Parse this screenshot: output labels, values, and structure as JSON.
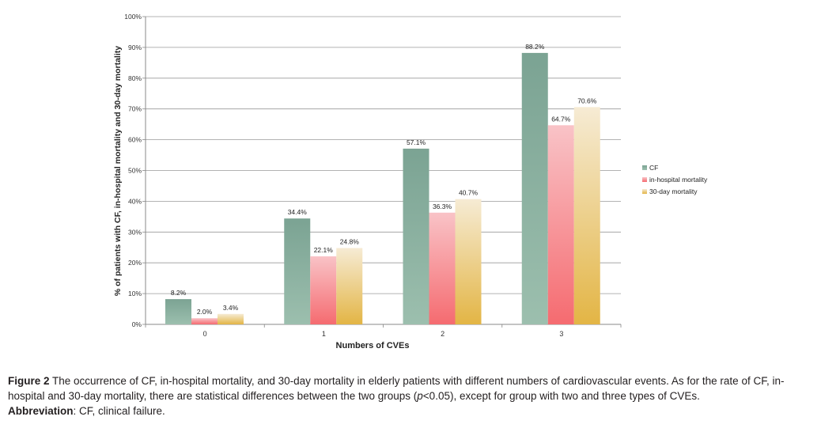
{
  "chart_data": {
    "type": "bar",
    "categories": [
      "0",
      "1",
      "2",
      "3"
    ],
    "series": [
      {
        "name": "CF",
        "values": [
          8.2,
          34.4,
          57.1,
          88.2
        ],
        "labels": [
          "8.2%",
          "34.4%",
          "57.1%",
          "88.2%"
        ],
        "color_top": "#7ba393",
        "color_bottom": "#9cbfae"
      },
      {
        "name": "in-hospital mortality",
        "values": [
          2.0,
          22.1,
          36.3,
          64.7
        ],
        "labels": [
          "2.0%",
          "22.1%",
          "36.3%",
          "64.7%"
        ],
        "color_top": "#f9c3c7",
        "color_bottom": "#f56b70"
      },
      {
        "name": "30-day mortality",
        "values": [
          3.4,
          24.8,
          40.7,
          70.6
        ],
        "labels": [
          "3.4%",
          "24.8%",
          "40.7%",
          "70.6%"
        ],
        "color_top": "#f6ebd4",
        "color_bottom": "#e3b545"
      }
    ],
    "xlabel": "Numbers of CVEs",
    "ylabel": "% of  patients with CF, in-hospital mortality and 30-day mortality",
    "ylim": [
      0,
      100
    ],
    "yticks": [
      "0%",
      "10%",
      "20%",
      "30%",
      "40%",
      "50%",
      "60%",
      "70%",
      "80%",
      "90%",
      "100%"
    ],
    "grid": true,
    "legend_position": "right"
  },
  "caption": {
    "figure_label": "Figure 2",
    "line1": "The occurrence of CF, in-hospital mortality, and 30-day mortality in elderly patients with different numbers of cardiovascular events. As for the rate of CF, in-",
    "line2_a": "hospital and 30-day mortality, there are statistical differences between the two groups (",
    "line2_p": "p",
    "line2_b": "<0.05), except for group with two and three types of CVEs.",
    "abbrev_label": "Abbreviation",
    "abbrev_text": ": CF, clinical failure."
  }
}
